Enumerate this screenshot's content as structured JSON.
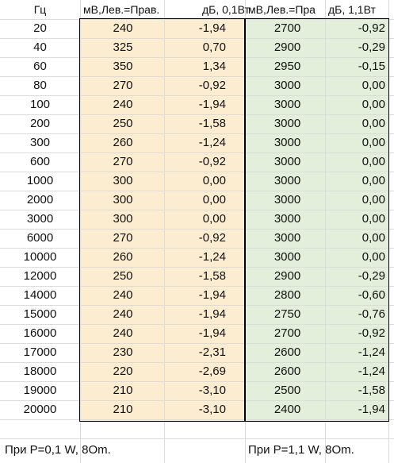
{
  "headers": [
    "Гц",
    "мВ,Лев.=Прав.",
    "дБ, 0,1Вт",
    "мВ,Лев.=Пра",
    "дБ, 1,1Вт"
  ],
  "rows": [
    [
      "20",
      "240",
      "-1,94",
      "2700",
      "-0,92"
    ],
    [
      "40",
      "325",
      "0,70",
      "2900",
      "-0,29"
    ],
    [
      "60",
      "350",
      "1,34",
      "2950",
      "-0,15"
    ],
    [
      "80",
      "270",
      "-0,92",
      "3000",
      "0,00"
    ],
    [
      "100",
      "240",
      "-1,94",
      "3000",
      "0,00"
    ],
    [
      "200",
      "250",
      "-1,58",
      "3000",
      "0,00"
    ],
    [
      "300",
      "260",
      "-1,24",
      "3000",
      "0,00"
    ],
    [
      "600",
      "270",
      "-0,92",
      "3000",
      "0,00"
    ],
    [
      "1000",
      "300",
      "0,00",
      "3000",
      "0,00"
    ],
    [
      "2000",
      "300",
      "0,00",
      "3000",
      "0,00"
    ],
    [
      "3000",
      "300",
      "0,00",
      "3000",
      "0,00"
    ],
    [
      "6000",
      "270",
      "-0,92",
      "3000",
      "0,00"
    ],
    [
      "10000",
      "260",
      "-1,24",
      "3000",
      "0,00"
    ],
    [
      "12000",
      "250",
      "-1,58",
      "2900",
      "-0,29"
    ],
    [
      "14000",
      "240",
      "-1,94",
      "2800",
      "-0,60"
    ],
    [
      "15000",
      "240",
      "-1,94",
      "2750",
      "-0,76"
    ],
    [
      "16000",
      "240",
      "-1,94",
      "2700",
      "-0,92"
    ],
    [
      "17000",
      "230",
      "-2,31",
      "2600",
      "-1,24"
    ],
    [
      "18000",
      "220",
      "-2,69",
      "2600",
      "-1,24"
    ],
    [
      "19000",
      "210",
      "-3,10",
      "2500",
      "-1,58"
    ],
    [
      "20000",
      "210",
      "-3,10",
      "2400",
      "-1,94"
    ]
  ],
  "notes": {
    "left": "При Р=0,1 W, 8Om.",
    "right": "При Р=1,1 W, 8Om."
  },
  "colors": {
    "fill_low_power": "#fcecd0",
    "fill_high_power": "#e3efdb",
    "gridline": "#dcdcdc",
    "border": "#000000"
  }
}
